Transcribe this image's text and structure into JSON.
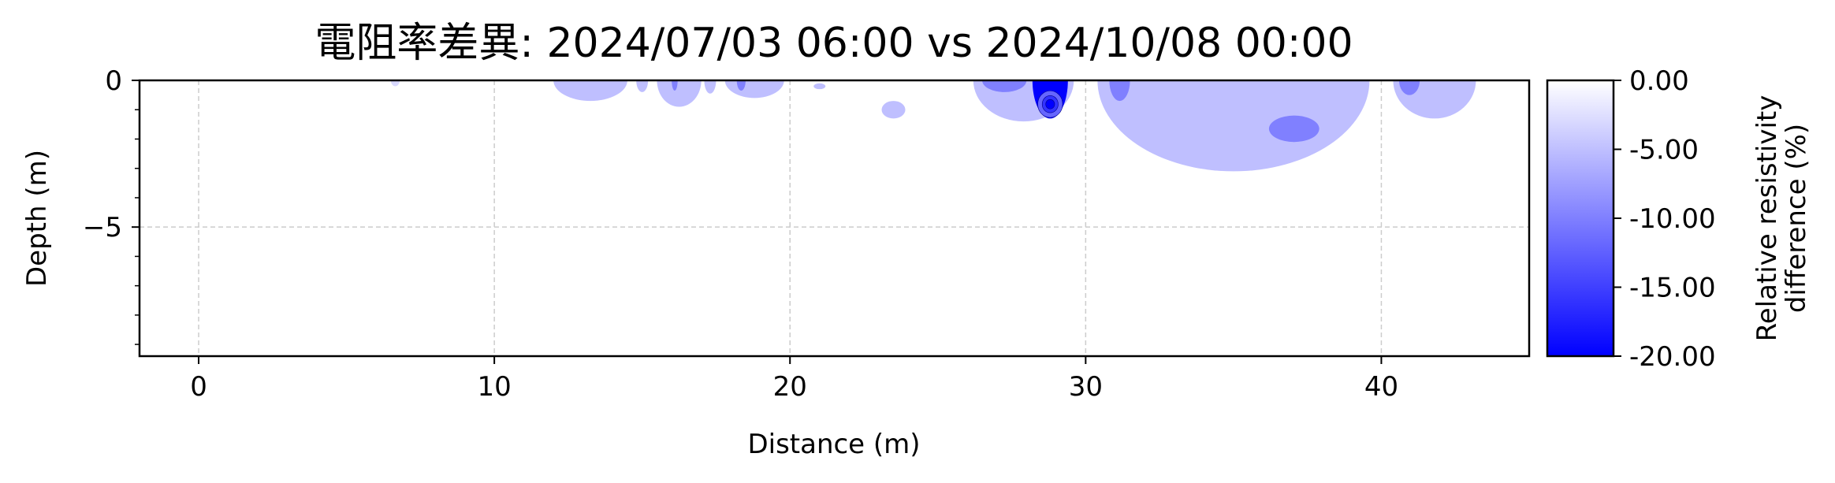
{
  "chart_data": {
    "type": "contour",
    "title": "電阻率差異: 2024/07/03 06:00 vs 2024/10/08 00:00",
    "xlabel": "Distance (m)",
    "ylabel": "Depth (m)",
    "xlim": [
      -2,
      45
    ],
    "ylim": [
      -9.4,
      0
    ],
    "xticks": [
      0,
      10,
      20,
      30,
      40
    ],
    "xtick_labels": [
      "0",
      "10",
      "20",
      "30",
      "40"
    ],
    "yticks": [
      0,
      -5
    ],
    "ytick_labels": [
      "0",
      "−5"
    ],
    "grid": true,
    "colormap": [
      "#0000ff",
      "#ffffff"
    ],
    "colorbar": {
      "label_line1": "Relative resistivity",
      "label_line2": "difference (%)",
      "range": [
        -20,
        0
      ],
      "ticks": [
        0,
        -5,
        -10,
        -15,
        -20
      ],
      "tick_labels": [
        "0.00",
        "-5.00",
        "-10.00",
        "-15.00",
        "-20.00"
      ]
    },
    "anomalies": [
      {
        "x": [
          6.5,
          6.8
        ],
        "depth": [
          0,
          0.2
        ],
        "value": -3
      },
      {
        "x": [
          12,
          14.5
        ],
        "depth": [
          0,
          0.7
        ],
        "value": -5
      },
      {
        "x": [
          14.8,
          15.2
        ],
        "depth": [
          0,
          0.4
        ],
        "value": -5
      },
      {
        "x": [
          15.5,
          17
        ],
        "depth": [
          0,
          0.9
        ],
        "value": -5
      },
      {
        "x": [
          16,
          16.2
        ],
        "depth": [
          0,
          0.35
        ],
        "value": -10
      },
      {
        "x": [
          17.1,
          17.5
        ],
        "depth": [
          0,
          0.45
        ],
        "value": -5
      },
      {
        "x": [
          17.8,
          19.8
        ],
        "depth": [
          0,
          0.6
        ],
        "value": -5
      },
      {
        "x": [
          18.2,
          18.5
        ],
        "depth": [
          0,
          0.35
        ],
        "value": -10
      },
      {
        "x": [
          20.8,
          21.2
        ],
        "depth": [
          0.1,
          0.3
        ],
        "value": -5
      },
      {
        "x": [
          23.1,
          23.9
        ],
        "depth": [
          0.7,
          1.3
        ],
        "value": -5
      },
      {
        "x": [
          26.2,
          29.6
        ],
        "depth": [
          0,
          1.4
        ],
        "value": -5
      },
      {
        "x": [
          26.5,
          28
        ],
        "depth": [
          0,
          0.4
        ],
        "value": -10
      },
      {
        "x": [
          28.2,
          29.4
        ],
        "depth": [
          0,
          1.3
        ],
        "value": -20
      },
      {
        "x": [
          30.4,
          39.6
        ],
        "depth": [
          0,
          3.1
        ],
        "value": -5
      },
      {
        "x": [
          30.8,
          31.5
        ],
        "depth": [
          0,
          0.7
        ],
        "value": -10
      },
      {
        "x": [
          36.2,
          37.9
        ],
        "depth": [
          1.2,
          2.1
        ],
        "value": -10
      },
      {
        "x": [
          40.4,
          43.2
        ],
        "depth": [
          0,
          1.3
        ],
        "value": -5
      },
      {
        "x": [
          40.6,
          41.3
        ],
        "depth": [
          0,
          0.5
        ],
        "value": -10
      }
    ]
  }
}
